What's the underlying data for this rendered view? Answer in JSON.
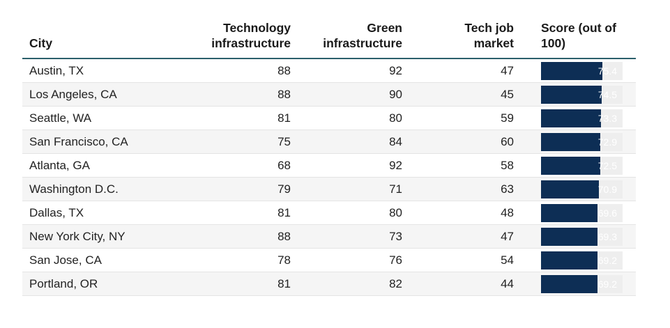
{
  "chart_data": {
    "type": "table",
    "columns": [
      "City",
      "Technology infrastructure",
      "Green infrastructure",
      "Tech job market",
      "Score (out of 100)"
    ],
    "header_lines": {
      "city": [
        "City"
      ],
      "tech": [
        "Technology",
        "infrastructure"
      ],
      "green": [
        "Green",
        "infrastructure"
      ],
      "job": [
        "Tech job",
        "market"
      ],
      "score": [
        "Score (out of",
        "100)"
      ]
    },
    "score_max": 100,
    "rows": [
      {
        "city": "Austin, TX",
        "tech": 88,
        "green": 92,
        "job": 47,
        "score": 75.4
      },
      {
        "city": "Los Angeles, CA",
        "tech": 88,
        "green": 90,
        "job": 45,
        "score": 74.5
      },
      {
        "city": "Seattle, WA",
        "tech": 81,
        "green": 80,
        "job": 59,
        "score": 73.3
      },
      {
        "city": "San Francisco, CA",
        "tech": 75,
        "green": 84,
        "job": 60,
        "score": 72.9
      },
      {
        "city": "Atlanta, GA",
        "tech": 68,
        "green": 92,
        "job": 58,
        "score": 72.5
      },
      {
        "city": "Washington D.C.",
        "tech": 79,
        "green": 71,
        "job": 63,
        "score": 70.9
      },
      {
        "city": "Dallas, TX",
        "tech": 81,
        "green": 80,
        "job": 48,
        "score": 69.6
      },
      {
        "city": "New York City, NY",
        "tech": 88,
        "green": 73,
        "job": 47,
        "score": 69.3
      },
      {
        "city": "San Jose, CA",
        "tech": 78,
        "green": 76,
        "job": 54,
        "score": 69.2
      },
      {
        "city": "Portland, OR",
        "tech": 81,
        "green": 82,
        "job": 44,
        "score": 69.2
      }
    ],
    "colors": {
      "bar": "#0d2e55",
      "track": "#eeeeee",
      "header_rule": "#2b5f6b"
    }
  }
}
